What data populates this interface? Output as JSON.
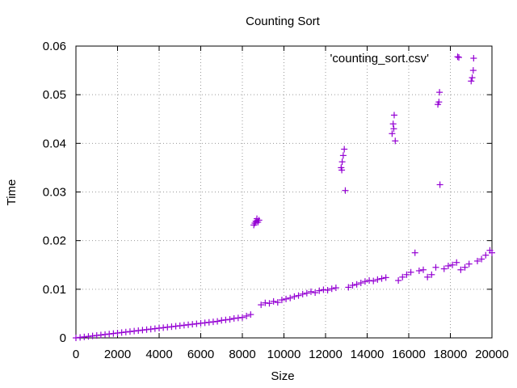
{
  "chart_data": {
    "type": "scatter",
    "title": "Counting Sort",
    "xlabel": "Size",
    "ylabel": "Time",
    "xlim": [
      0,
      20000
    ],
    "ylim": [
      0,
      0.06
    ],
    "x_ticks": [
      0,
      2000,
      4000,
      6000,
      8000,
      10000,
      12000,
      14000,
      16000,
      18000,
      20000
    ],
    "y_ticks": [
      0,
      0.01,
      0.02,
      0.03,
      0.04,
      0.05,
      0.06
    ],
    "x_tick_labels": [
      "0",
      "2000",
      "4000",
      "6000",
      "8000",
      "10000",
      "12000",
      "14000",
      "16000",
      "18000",
      "20000"
    ],
    "y_tick_labels": [
      "0",
      "0.01",
      "0.02",
      "0.03",
      "0.04",
      "0.05",
      "0.06"
    ],
    "grid": true,
    "legend_position": "top-right",
    "marker": "plus",
    "series": [
      {
        "name": "'counting_sort.csv'",
        "color": "#9400d3",
        "points": [
          [
            0,
            0
          ],
          [
            200,
            0.0001
          ],
          [
            400,
            0.0002
          ],
          [
            600,
            0.0003
          ],
          [
            800,
            0.0004
          ],
          [
            1000,
            0.0005
          ],
          [
            1200,
            0.0006
          ],
          [
            1400,
            0.0007
          ],
          [
            1600,
            0.0008
          ],
          [
            1800,
            0.0009
          ],
          [
            2000,
            0.001
          ],
          [
            2200,
            0.0011
          ],
          [
            2400,
            0.0012
          ],
          [
            2600,
            0.0013
          ],
          [
            2800,
            0.0014
          ],
          [
            3000,
            0.0015
          ],
          [
            3200,
            0.0016
          ],
          [
            3400,
            0.0017
          ],
          [
            3600,
            0.0018
          ],
          [
            3800,
            0.0019
          ],
          [
            4000,
            0.002
          ],
          [
            4200,
            0.0021
          ],
          [
            4400,
            0.0022
          ],
          [
            4600,
            0.0023
          ],
          [
            4800,
            0.0024
          ],
          [
            5000,
            0.0025
          ],
          [
            5200,
            0.0026
          ],
          [
            5400,
            0.0027
          ],
          [
            5600,
            0.0028
          ],
          [
            5800,
            0.0029
          ],
          [
            6000,
            0.003
          ],
          [
            6200,
            0.0031
          ],
          [
            6400,
            0.0032
          ],
          [
            6600,
            0.0033
          ],
          [
            6800,
            0.0034
          ],
          [
            7000,
            0.0036
          ],
          [
            7200,
            0.0037
          ],
          [
            7400,
            0.0038
          ],
          [
            7600,
            0.004
          ],
          [
            7800,
            0.0041
          ],
          [
            8000,
            0.0042
          ],
          [
            8200,
            0.0045
          ],
          [
            8400,
            0.0048
          ],
          [
            8550,
            0.0232
          ],
          [
            8600,
            0.0236
          ],
          [
            8650,
            0.024
          ],
          [
            8700,
            0.0245
          ],
          [
            8750,
            0.0238
          ],
          [
            8800,
            0.0242
          ],
          [
            8900,
            0.0068
          ],
          [
            9100,
            0.0072
          ],
          [
            9300,
            0.0071
          ],
          [
            9500,
            0.0075
          ],
          [
            9700,
            0.0073
          ],
          [
            9900,
            0.0078
          ],
          [
            10100,
            0.008
          ],
          [
            10300,
            0.0082
          ],
          [
            10500,
            0.0085
          ],
          [
            10700,
            0.0087
          ],
          [
            10900,
            0.009
          ],
          [
            11100,
            0.0092
          ],
          [
            11300,
            0.0095
          ],
          [
            11500,
            0.0093
          ],
          [
            11700,
            0.0097
          ],
          [
            11900,
            0.0099
          ],
          [
            12100,
            0.0098
          ],
          [
            12300,
            0.0101
          ],
          [
            12500,
            0.0103
          ],
          [
            12750,
            0.035
          ],
          [
            12800,
            0.0362
          ],
          [
            12850,
            0.0375
          ],
          [
            12900,
            0.0388
          ],
          [
            12950,
            0.0303
          ],
          [
            12780,
            0.0345
          ],
          [
            13100,
            0.0104
          ],
          [
            13300,
            0.0108
          ],
          [
            13500,
            0.011
          ],
          [
            13700,
            0.0113
          ],
          [
            13900,
            0.0116
          ],
          [
            14100,
            0.0118
          ],
          [
            14300,
            0.0117
          ],
          [
            14500,
            0.012
          ],
          [
            14700,
            0.0122
          ],
          [
            14900,
            0.0124
          ],
          [
            15200,
            0.042
          ],
          [
            15250,
            0.044
          ],
          [
            15300,
            0.0458
          ],
          [
            15350,
            0.0405
          ],
          [
            15280,
            0.043
          ],
          [
            15500,
            0.0118
          ],
          [
            15700,
            0.0125
          ],
          [
            15900,
            0.013
          ],
          [
            16100,
            0.0135
          ],
          [
            16300,
            0.0175
          ],
          [
            16500,
            0.0138
          ],
          [
            16700,
            0.014
          ],
          [
            16900,
            0.0125
          ],
          [
            17100,
            0.013
          ],
          [
            17300,
            0.0145
          ],
          [
            17400,
            0.048
          ],
          [
            17450,
            0.0485
          ],
          [
            17480,
            0.0505
          ],
          [
            17500,
            0.0315
          ],
          [
            17700,
            0.0142
          ],
          [
            17900,
            0.0148
          ],
          [
            18100,
            0.015
          ],
          [
            18300,
            0.0155
          ],
          [
            18350,
            0.0578
          ],
          [
            18500,
            0.014
          ],
          [
            18700,
            0.0145
          ],
          [
            18900,
            0.0152
          ],
          [
            19000,
            0.0528
          ],
          [
            19050,
            0.0535
          ],
          [
            19100,
            0.055
          ],
          [
            19120,
            0.0575
          ],
          [
            19300,
            0.0158
          ],
          [
            19500,
            0.0162
          ],
          [
            19700,
            0.017
          ],
          [
            19900,
            0.018
          ],
          [
            20000,
            0.0175
          ]
        ]
      }
    ]
  }
}
